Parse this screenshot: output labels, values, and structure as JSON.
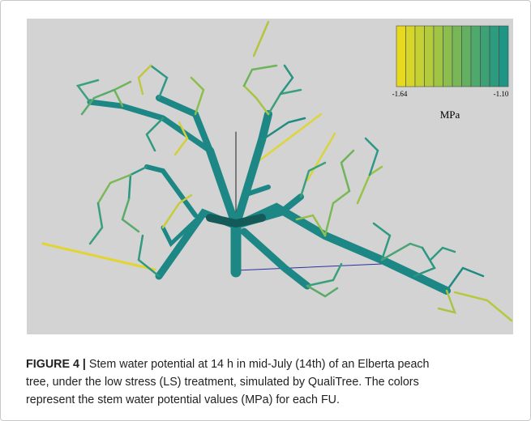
{
  "figure": {
    "legend": {
      "min_label": "-1.64",
      "max_label": "-1.10",
      "unit": "MPa"
    },
    "caption": {
      "label": "FIGURE 4 |",
      "lines": [
        "Stem water potential at 14 h in mid-July (14th) of an Elberta peach",
        "tree, under the low stress (LS) treatment, simulated by QualiTree. The colors",
        "represent the stem water potential values (MPa) for each FU."
      ]
    }
  }
}
